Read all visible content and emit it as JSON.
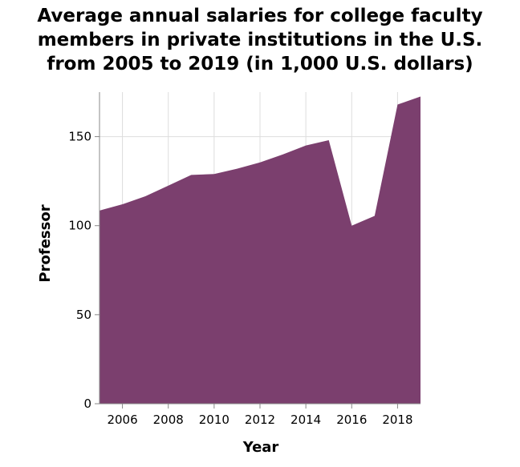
{
  "chart_data": {
    "type": "area",
    "title_lines": [
      "Average annual salaries for college faculty",
      "members in private institutions in the U.S.",
      "from 2005 to 2019 (in 1,000 U.S. dollars)"
    ],
    "xlabel": "Year",
    "ylabel": "Professor",
    "xlim": [
      2005,
      2019
    ],
    "ylim": [
      0,
      175
    ],
    "x_ticks": [
      2006,
      2008,
      2010,
      2012,
      2014,
      2016,
      2018
    ],
    "y_ticks": [
      0,
      50,
      100,
      150
    ],
    "grid": true,
    "series": [
      {
        "x": [
          2005,
          2006,
          2007,
          2008,
          2009,
          2010,
          2011,
          2012,
          2013,
          2014,
          2015,
          2016,
          2017,
          2018,
          2019
        ],
        "values": [
          108.5,
          112,
          116.5,
          122.5,
          128.5,
          129,
          132,
          135.5,
          140,
          145,
          148,
          100,
          105.5,
          168,
          172.5
        ]
      }
    ],
    "fill_color": "#7b3f6e",
    "axis_color": "#888888",
    "grid_color": "#dddddd"
  }
}
